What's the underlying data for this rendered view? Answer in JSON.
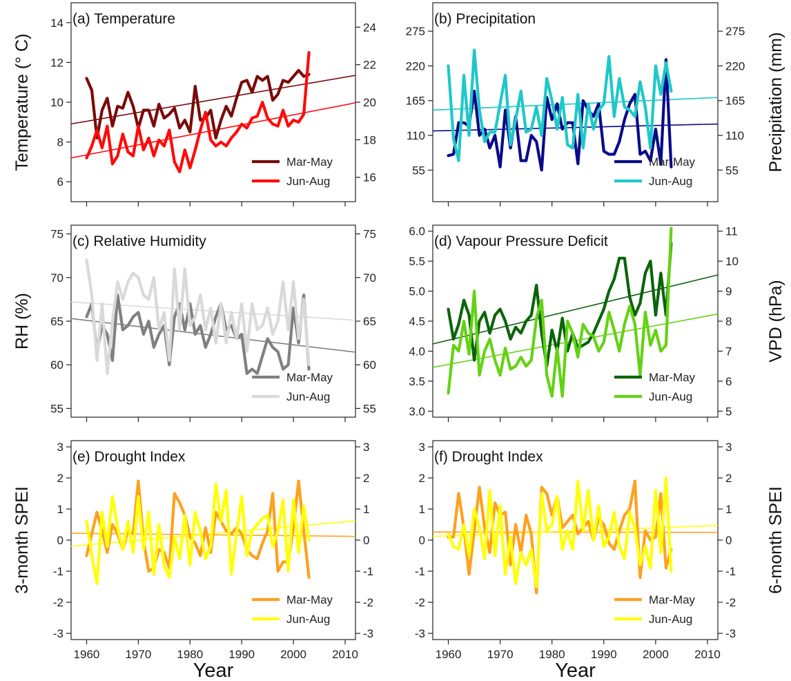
{
  "chart_data": [
    {
      "id": "a",
      "type": "line",
      "title": "(a) Temperature",
      "ylabel": "Temperature (° C)",
      "ylabel_right": "",
      "xlabel": "",
      "xlim": [
        1957,
        2012
      ],
      "ylim": [
        5,
        15
      ],
      "ylim_right": [
        14.7,
        25.3
      ],
      "yticks": [
        6,
        8,
        10,
        12,
        14
      ],
      "yticks_right": [
        16,
        18,
        20,
        22,
        24
      ],
      "xticks": [
        1960,
        1970,
        1980,
        1990,
        2000,
        2010
      ],
      "x": [
        1960,
        1961,
        1962,
        1963,
        1964,
        1965,
        1966,
        1967,
        1968,
        1969,
        1970,
        1971,
        1972,
        1973,
        1974,
        1975,
        1976,
        1977,
        1978,
        1979,
        1980,
        1981,
        1982,
        1983,
        1984,
        1985,
        1986,
        1987,
        1988,
        1989,
        1990,
        1991,
        1992,
        1993,
        1994,
        1995,
        1996,
        1997,
        1998,
        1999,
        2000,
        2001,
        2002,
        2003
      ],
      "series": [
        {
          "name": "Mar-May",
          "color": "#7a0a0a",
          "axis": "left",
          "values": [
            11.2,
            10.6,
            8.2,
            9.6,
            10.2,
            8.8,
            9.8,
            9.7,
            10.5,
            9.8,
            8.7,
            9.6,
            9.6,
            8.8,
            9.9,
            9.2,
            9.4,
            9.7,
            8.7,
            9.1,
            8.5,
            10.8,
            9.1,
            9.2,
            9.6,
            8.2,
            9.1,
            9.8,
            9.3,
            10.2,
            11.0,
            11.1,
            10.5,
            11.3,
            11.1,
            11.3,
            10.1,
            10.4,
            11.1,
            11.0,
            11.3,
            11.6,
            11.3,
            11.4
          ],
          "trend": [
            8.91,
            11.35
          ]
        },
        {
          "name": "Jun-Aug",
          "color": "#ff0a0a",
          "axis": "left",
          "values": [
            7.2,
            7.8,
            8.6,
            7.7,
            8.8,
            6.9,
            7.3,
            8.4,
            7.5,
            7.3,
            8.8,
            7.6,
            8.2,
            7.3,
            8.1,
            7.8,
            8.6,
            7.0,
            6.5,
            7.6,
            6.7,
            7.6,
            8.6,
            9.5,
            8.1,
            7.8,
            8.0,
            7.8,
            8.2,
            8.5,
            8.9,
            8.7,
            9.2,
            9.3,
            10.0,
            9.2,
            8.9,
            8.8,
            9.6,
            8.8,
            9.1,
            9.0,
            9.4,
            12.5
          ],
          "trend": [
            7.2,
            9.97
          ]
        }
      ],
      "legend": "bottom-right",
      "grid": false
    },
    {
      "id": "b",
      "type": "line",
      "title": "(b) Precipitation",
      "ylabel": "",
      "ylabel_right": "Precipitation (mm)",
      "xlabel": "",
      "xlim": [
        1957,
        2012
      ],
      "ylim": [
        5,
        320
      ],
      "ylim_right": [
        5,
        320
      ],
      "yticks": [
        55,
        110,
        165,
        220,
        275
      ],
      "yticks_right": [
        55,
        110,
        165,
        220,
        275
      ],
      "xticks": [
        1960,
        1970,
        1980,
        1990,
        2000,
        2010
      ],
      "x": [
        1960,
        1961,
        1962,
        1963,
        1964,
        1965,
        1966,
        1967,
        1968,
        1969,
        1970,
        1971,
        1972,
        1973,
        1974,
        1975,
        1976,
        1977,
        1978,
        1979,
        1980,
        1981,
        1982,
        1983,
        1984,
        1985,
        1986,
        1987,
        1988,
        1989,
        1990,
        1991,
        1992,
        1993,
        1994,
        1995,
        1996,
        1997,
        1998,
        1999,
        2000,
        2001,
        2002,
        2003
      ],
      "series": [
        {
          "name": "Mar-May",
          "color": "#0a0a8a",
          "axis": "left",
          "values": [
            78,
            80,
            130,
            130,
            125,
            180,
            110,
            120,
            90,
            110,
            60,
            150,
            90,
            140,
            70,
            70,
            110,
            100,
            55,
            170,
            135,
            160,
            120,
            130,
            130,
            65,
            165,
            150,
            140,
            160,
            85,
            80,
            80,
            100,
            135,
            160,
            175,
            80,
            85,
            70,
            120,
            65,
            230,
            60
          ],
          "trend": [
            117,
            128
          ]
        },
        {
          "name": "Jun-Aug",
          "color": "#1ec8c8",
          "axis": "left",
          "values": [
            220,
            105,
            70,
            205,
            110,
            245,
            150,
            100,
            115,
            115,
            160,
            205,
            95,
            135,
            180,
            115,
            120,
            155,
            110,
            200,
            165,
            120,
            170,
            95,
            90,
            175,
            90,
            160,
            120,
            150,
            160,
            235,
            140,
            200,
            155,
            150,
            140,
            195,
            155,
            90,
            220,
            175,
            225,
            180
          ],
          "trend": [
            150,
            170
          ]
        }
      ],
      "legend": "bottom-right",
      "grid": false
    },
    {
      "id": "c",
      "type": "line",
      "title": "(c) Relative Humidity",
      "ylabel": "RH (%)",
      "ylabel_right": "",
      "xlabel": "",
      "xlim": [
        1957,
        2012
      ],
      "ylim": [
        54,
        76
      ],
      "ylim_right": [
        54,
        76
      ],
      "yticks": [
        55,
        60,
        65,
        70,
        75
      ],
      "yticks_right": [
        55,
        60,
        65,
        70,
        75
      ],
      "xticks": [
        1960,
        1970,
        1980,
        1990,
        2000,
        2010
      ],
      "x": [
        1960,
        1961,
        1962,
        1963,
        1964,
        1965,
        1966,
        1967,
        1968,
        1969,
        1970,
        1971,
        1972,
        1973,
        1974,
        1975,
        1976,
        1977,
        1978,
        1979,
        1980,
        1981,
        1982,
        1983,
        1984,
        1985,
        1986,
        1987,
        1988,
        1989,
        1990,
        1991,
        1992,
        1993,
        1994,
        1995,
        1996,
        1997,
        1998,
        1999,
        2000,
        2001,
        2002,
        2003
      ],
      "series": [
        {
          "name": "Mar-May",
          "color": "#808080",
          "axis": "left",
          "values": [
            65.5,
            67,
            61.5,
            64.5,
            63.5,
            60.5,
            68,
            64,
            64.5,
            65.5,
            66,
            63.5,
            65,
            62,
            63.5,
            64.5,
            60,
            65.5,
            67,
            64,
            67,
            63.5,
            64.5,
            62,
            63.5,
            65.5,
            67,
            64,
            64.5,
            63,
            63.5,
            59,
            59.5,
            59,
            61,
            63,
            62,
            61.5,
            59.5,
            60,
            66.5,
            62.5,
            68,
            59.5
          ],
          "trend": [
            65.3,
            61.45
          ]
        },
        {
          "name": "Jun-Aug",
          "color": "#d9d9d9",
          "axis": "left",
          "values": [
            72,
            68,
            60.5,
            67,
            59,
            65,
            69.5,
            67.5,
            69.5,
            70.5,
            70,
            68,
            67.5,
            70,
            64,
            66,
            60.5,
            71,
            64,
            71,
            64.5,
            65.5,
            68,
            64,
            66.5,
            62.5,
            67,
            62.5,
            66,
            63,
            67,
            61.5,
            67,
            64,
            64.5,
            66.5,
            63.5,
            65,
            69.5,
            64,
            69.5,
            63,
            67.5,
            60
          ],
          "trend": [
            67.2,
            65.1
          ]
        }
      ],
      "legend": "bottom-right",
      "grid": false
    },
    {
      "id": "d",
      "type": "line",
      "title": "(d) Vapour Pressure Deficit",
      "ylabel": "",
      "ylabel_right": "VPD (hPa)",
      "xlabel": "",
      "xlim": [
        1957,
        2012
      ],
      "ylim": [
        2.9,
        6.1
      ],
      "ylim_right": [
        4.8,
        11.2
      ],
      "yticks": [
        3.0,
        3.5,
        4.0,
        4.5,
        5.0,
        5.5,
        6.0
      ],
      "yticks_right": [
        5,
        6,
        7,
        8,
        9,
        10,
        11
      ],
      "xticks": [
        1960,
        1970,
        1980,
        1990,
        2000,
        2010
      ],
      "x": [
        1960,
        1961,
        1962,
        1963,
        1964,
        1965,
        1966,
        1967,
        1968,
        1969,
        1970,
        1971,
        1972,
        1973,
        1974,
        1975,
        1976,
        1977,
        1978,
        1979,
        1980,
        1981,
        1982,
        1983,
        1984,
        1985,
        1986,
        1987,
        1988,
        1989,
        1990,
        1991,
        1992,
        1993,
        1994,
        1995,
        1996,
        1997,
        1998,
        1999,
        2000,
        2001,
        2002,
        2003
      ],
      "series": [
        {
          "name": "Mar-May",
          "color": "#0a640a",
          "axis": "left",
          "values": [
            4.7,
            4.2,
            4.45,
            4.85,
            4.6,
            3.85,
            4.5,
            4.65,
            4.3,
            4.6,
            4.7,
            4.5,
            4.2,
            4.4,
            4.3,
            4.5,
            4.6,
            5.1,
            4.3,
            3.75,
            4.35,
            4.0,
            4.55,
            4.0,
            4.3,
            4.05,
            4.1,
            4.15,
            4.3,
            4.5,
            4.7,
            5.0,
            5.2,
            5.55,
            5.55,
            4.9,
            4.6,
            4.8,
            5.3,
            5.5,
            4.6,
            5.3,
            4.6,
            5.8
          ],
          "trend": [
            4.12,
            5.27
          ]
        },
        {
          "name": "Jun-Aug",
          "color": "#64d214",
          "axis": "left",
          "values": [
            3.3,
            4.1,
            4.0,
            4.5,
            3.95,
            5.0,
            3.6,
            4.0,
            4.2,
            3.85,
            3.6,
            4.05,
            3.7,
            3.75,
            3.9,
            3.75,
            3.85,
            4.55,
            4.85,
            3.6,
            3.25,
            4.05,
            3.25,
            4.5,
            4.3,
            3.9,
            4.45,
            4.3,
            4.25,
            4.0,
            4.15,
            4.65,
            4.35,
            4.0,
            4.45,
            4.75,
            4.45,
            3.6,
            4.65,
            4.1,
            4.35,
            4.0,
            4.1,
            6.05
          ],
          "trend": [
            3.73,
            4.62
          ]
        }
      ],
      "legend": "bottom-right",
      "grid": false
    },
    {
      "id": "e",
      "type": "line",
      "title": "(e) Drought Index",
      "ylabel": "3-month SPEI",
      "ylabel_right": "",
      "xlabel": "Year",
      "xlim": [
        1957,
        2012
      ],
      "ylim": [
        -3.2,
        3.2
      ],
      "ylim_right": [
        -3.2,
        3.2
      ],
      "yticks": [
        -3,
        -2,
        -1,
        0,
        1,
        2,
        3
      ],
      "yticks_right": [
        -3,
        -2,
        -1,
        0,
        1,
        2,
        3
      ],
      "xticks": [
        1960,
        1970,
        1980,
        1990,
        2000,
        2010
      ],
      "x": [
        1960,
        1961,
        1962,
        1963,
        1964,
        1965,
        1966,
        1967,
        1968,
        1969,
        1970,
        1971,
        1972,
        1973,
        1974,
        1975,
        1976,
        1977,
        1978,
        1979,
        1980,
        1981,
        1982,
        1983,
        1984,
        1985,
        1986,
        1987,
        1988,
        1989,
        1990,
        1991,
        1992,
        1993,
        1994,
        1995,
        1996,
        1997,
        1998,
        1999,
        2000,
        2001,
        2002,
        2003
      ],
      "series": [
        {
          "name": "Mar-May",
          "color": "#ffa01e",
          "axis": "left",
          "values": [
            -0.5,
            0.2,
            0.9,
            0.3,
            -0.4,
            0.5,
            0.2,
            -0.3,
            0.3,
            0.2,
            1.9,
            0.0,
            -1.0,
            -0.9,
            -0.3,
            -0.4,
            -0.9,
            1.5,
            1.2,
            0.8,
            0.1,
            -0.1,
            -0.5,
            0.4,
            -0.4,
            0.9,
            0.6,
            0.3,
            0.2,
            0.4,
            0.2,
            -0.3,
            -0.5,
            -0.6,
            -0.1,
            0.3,
            1.5,
            -1.0,
            -0.7,
            -0.7,
            0.4,
            1.9,
            0.3,
            -1.2
          ],
          "trend": [
            0.22,
            0.12
          ]
        },
        {
          "name": "Jun-Aug",
          "color": "#ffff0a",
          "axis": "left",
          "values": [
            0.6,
            -0.5,
            -1.4,
            0.9,
            -0.2,
            1.4,
            0.4,
            -0.3,
            0.6,
            -0.4,
            1.4,
            -0.3,
            0.9,
            -1.1,
            0.5,
            -0.8,
            -1.2,
            0.1,
            -0.6,
            0.8,
            -0.8,
            0.9,
            0.3,
            -0.6,
            -0.2,
            1.8,
            0.6,
            1.6,
            -1.1,
            0.2,
            1.4,
            -0.5,
            0.3,
            0.5,
            0.7,
            0.8,
            -0.2,
            0.3,
            1.3,
            -1.0,
            1.3,
            -0.4,
            1.1,
            0.0
          ],
          "trend": [
            -0.2,
            0.62
          ]
        }
      ],
      "legend": "bottom-right",
      "grid": false
    },
    {
      "id": "f",
      "type": "line",
      "title": "(f) Drought Index",
      "ylabel": "",
      "ylabel_right": "6-month SPEI",
      "xlabel": "Year",
      "xlim": [
        1957,
        2012
      ],
      "ylim": [
        -3.2,
        3.2
      ],
      "ylim_right": [
        -3.2,
        3.2
      ],
      "yticks": [
        -3,
        -2,
        -1,
        0,
        1,
        2,
        3
      ],
      "yticks_right": [
        -3,
        -2,
        -1,
        0,
        1,
        2,
        3
      ],
      "xticks": [
        1960,
        1970,
        1980,
        1990,
        2000,
        2010
      ],
      "x": [
        1960,
        1961,
        1962,
        1963,
        1964,
        1965,
        1966,
        1967,
        1968,
        1969,
        1970,
        1971,
        1972,
        1973,
        1974,
        1975,
        1976,
        1977,
        1978,
        1979,
        1980,
        1981,
        1982,
        1983,
        1984,
        1985,
        1986,
        1987,
        1988,
        1989,
        1990,
        1991,
        1992,
        1993,
        1994,
        1995,
        1996,
        1997,
        1998,
        1999,
        2000,
        2001,
        2002,
        2003
      ],
      "series": [
        {
          "name": "Mar-May",
          "color": "#ffa01e",
          "axis": "left",
          "values": [
            0.1,
            0.1,
            1.5,
            0.4,
            -1.1,
            0.3,
            1.7,
            0.4,
            -0.4,
            1.2,
            0.8,
            0.9,
            -0.8,
            0.5,
            -0.4,
            0.8,
            0.2,
            -1.7,
            1.7,
            1.5,
            0.8,
            1.4,
            0.4,
            0.6,
            0.8,
            0.2,
            0.4,
            0.6,
            0.0,
            0.7,
            0.5,
            -0.1,
            -0.3,
            0.3,
            0.8,
            1.0,
            1.9,
            -1.2,
            0.3,
            0.0,
            0.1,
            1.5,
            -0.9,
            -0.3
          ],
          "trend": [
            0.26,
            0.25
          ]
        },
        {
          "name": "Jun-Aug",
          "color": "#ffff0a",
          "axis": "left",
          "values": [
            0.2,
            -0.2,
            -0.3,
            0.5,
            -0.5,
            1.0,
            0.4,
            -0.6,
            1.6,
            -0.5,
            1.1,
            -1.1,
            0.1,
            -1.4,
            -0.4,
            -0.8,
            -0.3,
            -1.5,
            1.5,
            0.3,
            0.5,
            1.4,
            -0.3,
            0.3,
            -0.3,
            1.9,
            0.3,
            1.6,
            0.0,
            1.1,
            -0.2,
            0.1,
            0.9,
            -0.2,
            -0.6,
            0.9,
            0.4,
            -0.8,
            -0.2,
            -0.9,
            1.6,
            -0.4,
            2.0,
            -1.0
          ],
          "trend": [
            0.12,
            0.47
          ]
        }
      ],
      "legend": "bottom-right",
      "grid": false
    }
  ]
}
